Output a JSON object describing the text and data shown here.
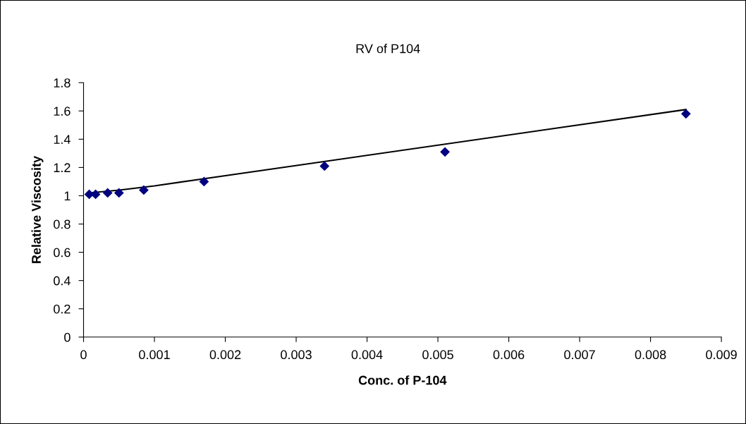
{
  "chart_data": {
    "type": "scatter",
    "title": "RV of P104",
    "xlabel": "Conc. of P-104",
    "ylabel": "Relative Viscosity",
    "marker": "diamond",
    "grid": false,
    "legend": false,
    "xlim": [
      0,
      0.009
    ],
    "xticks": [
      0,
      0.001,
      0.002,
      0.003,
      0.004,
      0.005,
      0.006,
      0.007,
      0.008,
      0.009
    ],
    "ylim": [
      0,
      1.8
    ],
    "yticks": [
      0,
      0.2,
      0.4,
      0.6,
      0.8,
      1,
      1.2,
      1.4,
      1.6,
      1.8
    ],
    "series": [
      {
        "color": "#000080",
        "x": [
          8e-05,
          0.00017,
          0.00034,
          0.0005,
          0.00085,
          0.0017,
          0.0034,
          0.0051,
          0.0085
        ],
        "values": [
          1.01,
          1.01,
          1.02,
          1.02,
          1.04,
          1.1,
          1.21,
          1.31,
          1.58
        ]
      },
      {
        "type": "line",
        "color": "#000000",
        "marker": "none",
        "x": [
          8e-05,
          0.0005,
          0.001,
          0.0085
        ],
        "values": [
          1.02,
          1.04,
          1.07,
          1.61
        ]
      }
    ]
  }
}
